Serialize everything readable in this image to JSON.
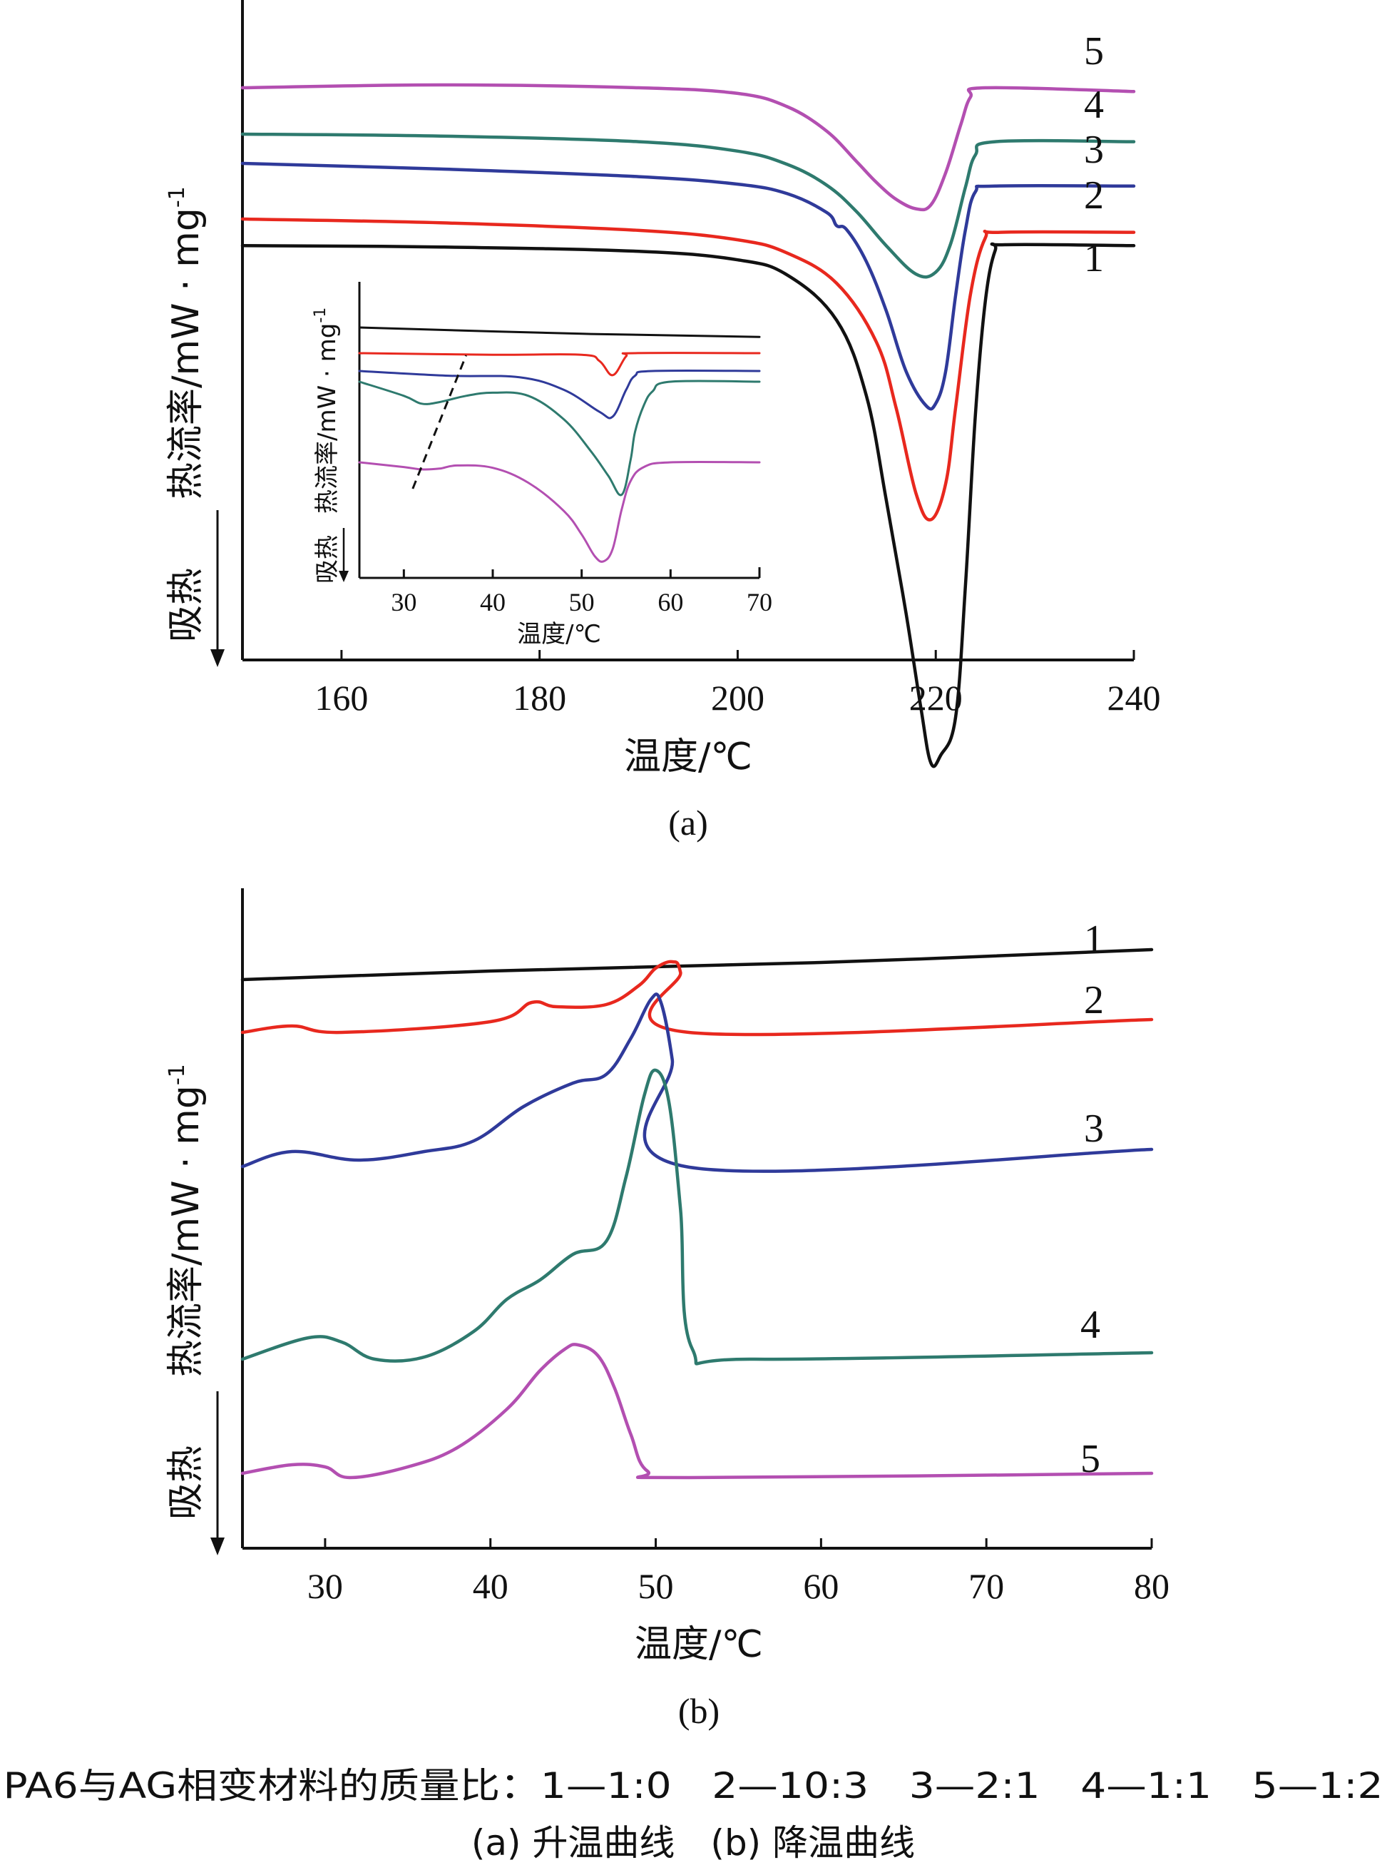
{
  "chart_data": [
    {
      "id": "a",
      "type": "line",
      "panel_label": "(a)",
      "xlabel": "温度/℃",
      "ylabel": "热流率/mW · mg",
      "ylabel_sup": "-1",
      "endo_label": "吸热",
      "xlim": [
        150,
        240
      ],
      "xticks": [
        160,
        180,
        200,
        220,
        240
      ],
      "series": [
        {
          "name": "1",
          "color": "#111111",
          "points": [
            [
              150,
              0.05
            ],
            [
              170,
              0.12
            ],
            [
              190,
              0.35
            ],
            [
              200,
              0.8
            ],
            [
              205,
              1.6
            ],
            [
              210,
              4.0
            ],
            [
              213,
              8.0
            ],
            [
              215,
              13.5
            ],
            [
              217,
              19.5
            ],
            [
              218.5,
              24.5
            ],
            [
              219.5,
              27.4
            ],
            [
              220.5,
              27.0
            ],
            [
              222,
              25.0
            ],
            [
              223,
              18.0
            ],
            [
              224,
              9.0
            ],
            [
              225,
              3.0
            ],
            [
              226,
              0.3
            ],
            [
              227,
              0.0
            ],
            [
              240,
              0.05
            ]
          ]
        },
        {
          "name": "2",
          "color": "#e8281e",
          "points": [
            [
              150,
              0.0
            ],
            [
              170,
              0.2
            ],
            [
              190,
              0.6
            ],
            [
              200,
              1.1
            ],
            [
              205,
              1.8
            ],
            [
              210,
              3.4
            ],
            [
              214,
              6.5
            ],
            [
              216,
              10.0
            ],
            [
              218,
              14.5
            ],
            [
              219.5,
              15.9
            ],
            [
              221,
              14.0
            ],
            [
              222,
              10.0
            ],
            [
              223.5,
              4.0
            ],
            [
              225,
              1.0
            ],
            [
              226.5,
              0.7
            ],
            [
              240,
              0.7
            ]
          ]
        },
        {
          "name": "3",
          "color": "#2f3a9a",
          "points": [
            [
              150,
              0.0
            ],
            [
              170,
              0.3
            ],
            [
              190,
              0.7
            ],
            [
              200,
              1.1
            ],
            [
              205,
              1.6
            ],
            [
              209,
              2.6
            ],
            [
              210,
              3.3
            ],
            [
              211,
              3.5
            ],
            [
              213,
              5.2
            ],
            [
              215,
              7.8
            ],
            [
              217,
              11.0
            ],
            [
              219,
              12.8
            ],
            [
              220,
              12.7
            ],
            [
              221,
              11.0
            ],
            [
              222,
              7.0
            ],
            [
              223,
              3.5
            ],
            [
              224,
              1.5
            ],
            [
              226,
              1.2
            ],
            [
              240,
              1.2
            ]
          ]
        },
        {
          "name": "4",
          "color": "#2e7a6e",
          "points": [
            [
              150,
              0.0
            ],
            [
              170,
              0.1
            ],
            [
              190,
              0.4
            ],
            [
              200,
              0.9
            ],
            [
              205,
              1.6
            ],
            [
              209,
              2.7
            ],
            [
              212,
              4.1
            ],
            [
              215,
              5.9
            ],
            [
              218,
              7.4
            ],
            [
              220,
              7.3
            ],
            [
              221.5,
              5.8
            ],
            [
              223,
              2.8
            ],
            [
              224,
              1.1
            ],
            [
              226,
              0.4
            ],
            [
              240,
              0.4
            ]
          ]
        },
        {
          "name": "5",
          "color": "#b34fb1",
          "points": [
            [
              150,
              0.0
            ],
            [
              170,
              -0.15
            ],
            [
              190,
              0.0
            ],
            [
              200,
              0.3
            ],
            [
              205,
              1.0
            ],
            [
              209,
              2.3
            ],
            [
              212,
              3.9
            ],
            [
              214,
              5.0
            ],
            [
              216,
              5.9
            ],
            [
              218,
              6.4
            ],
            [
              219.5,
              6.2
            ],
            [
              221,
              4.5
            ],
            [
              222.5,
              2.0
            ],
            [
              223.5,
              0.5
            ],
            [
              225,
              0.0
            ],
            [
              240,
              0.2
            ]
          ]
        }
      ],
      "inset": {
        "xlabel": "温度/℃",
        "ylabel": "热流率/mW · mg",
        "ylabel_sup": "-1",
        "endo_label": "吸热",
        "xlim": [
          25,
          70
        ],
        "xticks": [
          30,
          40,
          50,
          60,
          70
        ],
        "series": [
          {
            "name": "1",
            "color": "#111111",
            "points": [
              [
                25,
                0.0
              ],
              [
                50,
                0.4
              ],
              [
                70,
                0.6
              ]
            ]
          },
          {
            "name": "2",
            "color": "#e8281e",
            "points": [
              [
                25,
                0.0
              ],
              [
                40,
                0.1
              ],
              [
                50,
                0.1
              ],
              [
                52,
                0.5
              ],
              [
                53.5,
                1.4
              ],
              [
                55,
                0.2
              ],
              [
                56,
                0.0
              ],
              [
                70,
                0.0
              ]
            ]
          },
          {
            "name": "3",
            "color": "#2f3a9a",
            "points": [
              [
                25,
                0.0
              ],
              [
                35,
                0.3
              ],
              [
                43,
                0.4
              ],
              [
                48,
                1.2
              ],
              [
                52,
                2.6
              ],
              [
                53.5,
                2.9
              ],
              [
                55,
                1.2
              ],
              [
                56,
                0.3
              ],
              [
                58,
                0.0
              ],
              [
                70,
                0.0
              ]
            ]
          },
          {
            "name": "4",
            "color": "#2e7a6e",
            "points": [
              [
                25,
                0.0
              ],
              [
                30,
                0.9
              ],
              [
                32,
                1.4
              ],
              [
                34,
                1.3
              ],
              [
                37,
                0.9
              ],
              [
                40,
                0.7
              ],
              [
                44,
                0.9
              ],
              [
                48,
                2.4
              ],
              [
                51,
                4.4
              ],
              [
                53,
                6.0
              ],
              [
                54.5,
                7.2
              ],
              [
                55.5,
                5.0
              ],
              [
                56,
                3.2
              ],
              [
                57,
                1.5
              ],
              [
                58,
                0.6
              ],
              [
                60,
                0.0
              ],
              [
                70,
                0.0
              ]
            ]
          },
          {
            "name": "5",
            "color": "#b34fb1",
            "points": [
              [
                25,
                0.0
              ],
              [
                30,
                0.3
              ],
              [
                32,
                0.45
              ],
              [
                34,
                0.4
              ],
              [
                36,
                0.2
              ],
              [
                40,
                0.35
              ],
              [
                44,
                1.3
              ],
              [
                48,
                3.1
              ],
              [
                50,
                4.6
              ],
              [
                51.5,
                6.0
              ],
              [
                52.5,
                6.3
              ],
              [
                53.5,
                5.5
              ],
              [
                54.5,
                3.0
              ],
              [
                55.5,
                1.2
              ],
              [
                57,
                0.3
              ],
              [
                60,
                0.0
              ],
              [
                70,
                0.0
              ]
            ]
          }
        ],
        "dashed_line": [
          [
            31,
            7.5
          ],
          [
            37,
            -1.0
          ]
        ]
      }
    },
    {
      "id": "b",
      "type": "line",
      "panel_label": "(b)",
      "xlabel": "温度/℃",
      "ylabel": "热流率/mW · mg",
      "ylabel_sup": "-1",
      "endo_label": "吸热",
      "xlim": [
        25,
        80
      ],
      "xticks": [
        30,
        40,
        50,
        60,
        70,
        80
      ],
      "series": [
        {
          "name": "1",
          "color": "#111111",
          "points": [
            [
              25,
              0.0
            ],
            [
              40,
              0.4
            ],
            [
              60,
              0.8
            ],
            [
              80,
              1.4
            ]
          ]
        },
        {
          "name": "2",
          "color": "#e8281e",
          "points": [
            [
              25,
              0.0
            ],
            [
              28,
              0.3
            ],
            [
              31,
              0.0
            ],
            [
              40,
              0.5
            ],
            [
              42.5,
              1.4
            ],
            [
              44,
              1.2
            ],
            [
              47,
              1.3
            ],
            [
              49,
              2.2
            ],
            [
              50,
              3.0
            ],
            [
              51,
              3.3
            ],
            [
              51.5,
              2.8
            ],
            [
              52,
              0.0
            ],
            [
              80,
              0.6
            ]
          ]
        },
        {
          "name": "3",
          "color": "#2f3a9a",
          "points": [
            [
              25,
              0.0
            ],
            [
              28,
              0.7
            ],
            [
              32,
              0.3
            ],
            [
              36,
              0.7
            ],
            [
              39,
              1.2
            ],
            [
              42,
              2.8
            ],
            [
              45,
              3.9
            ],
            [
              47,
              4.3
            ],
            [
              48.5,
              6.0
            ],
            [
              49.7,
              7.8
            ],
            [
              50.3,
              7.7
            ],
            [
              51,
              5.0
            ],
            [
              51.8,
              0.0
            ],
            [
              80,
              0.8
            ]
          ]
        },
        {
          "name": "4",
          "color": "#2e7a6e",
          "points": [
            [
              25,
              0.0
            ],
            [
              29,
              1.0
            ],
            [
              31,
              0.8
            ],
            [
              33,
              0.0
            ],
            [
              36,
              0.1
            ],
            [
              39,
              1.3
            ],
            [
              41,
              2.8
            ],
            [
              43,
              3.7
            ],
            [
              45,
              4.9
            ],
            [
              47,
              5.5
            ],
            [
              48.2,
              8.5
            ],
            [
              49.3,
              12.3
            ],
            [
              50,
              13.5
            ],
            [
              50.8,
              12.0
            ],
            [
              51.5,
              7.0
            ],
            [
              52.2,
              0.5
            ],
            [
              56,
              0.0
            ],
            [
              80,
              0.3
            ]
          ]
        },
        {
          "name": "5",
          "color": "#b34fb1",
          "points": [
            [
              25,
              0.0
            ],
            [
              28,
              0.4
            ],
            [
              30,
              0.3
            ],
            [
              31.5,
              -0.2
            ],
            [
              35,
              0.3
            ],
            [
              38,
              1.2
            ],
            [
              41,
              3.0
            ],
            [
              43,
              4.8
            ],
            [
              44.5,
              5.8
            ],
            [
              45.3,
              6.0
            ],
            [
              46.5,
              5.5
            ],
            [
              47.5,
              4.0
            ],
            [
              48.5,
              1.8
            ],
            [
              49.5,
              0.1
            ],
            [
              52,
              -0.2
            ],
            [
              80,
              0.0
            ]
          ]
        }
      ]
    }
  ],
  "figure_caption": {
    "legend_line": "PA6与AG相变材料的质量比：1—1:0　2—10:3　3—2:1　4—1:1　5—1:2",
    "sub_line": "(a) 升温曲线　(b) 降温曲线"
  }
}
